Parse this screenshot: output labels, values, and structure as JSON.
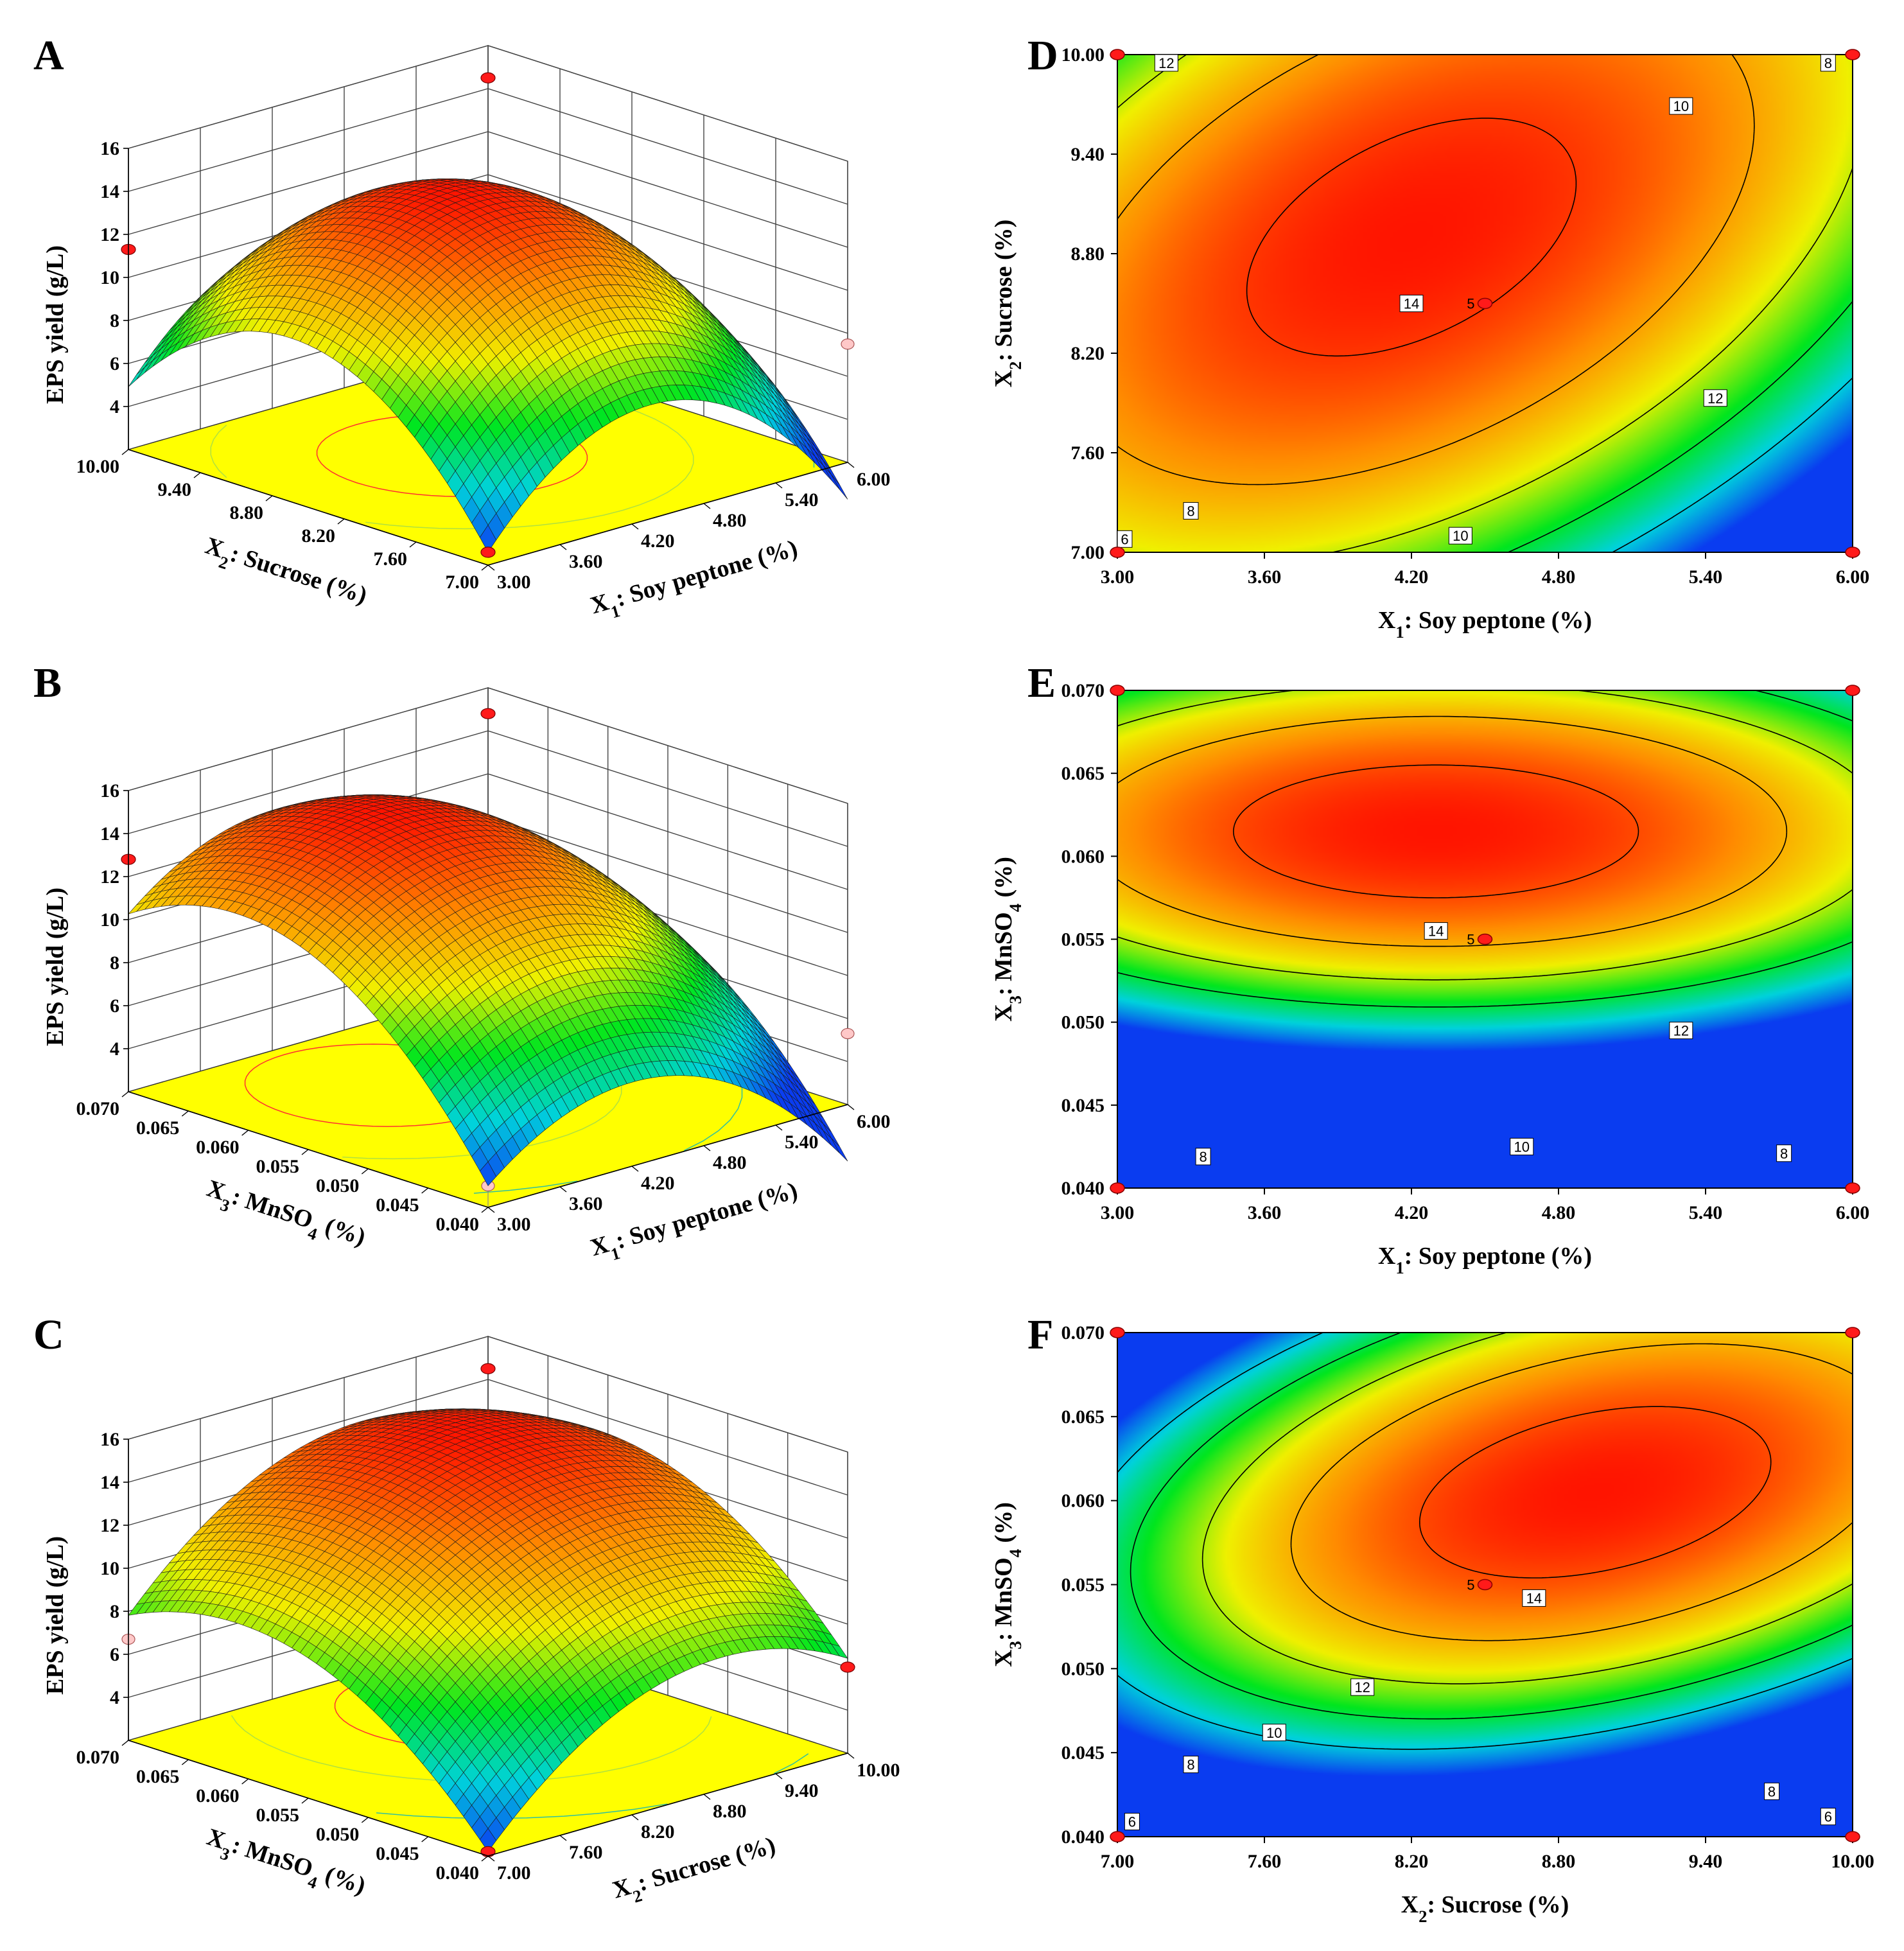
{
  "figure": {
    "colors": {
      "low": "#0a3cf0",
      "cyan": "#00d2dc",
      "green": "#00e61e",
      "yellow": "#f0f000",
      "orange": "#ff8c00",
      "red": "#ff1400",
      "floor": "#ffff00",
      "design_point": "#ff1a1a",
      "design_point_below": "#ffc8c8"
    }
  },
  "chart_data": [
    {
      "panel": "A",
      "type": "surface",
      "zlabel": "EPS yield (g/L)",
      "z_ticks": [
        "4",
        "6",
        "8",
        "10",
        "12",
        "14",
        "16"
      ],
      "zlim": [
        2,
        16
      ],
      "left_axis": {
        "label_main": "X",
        "label_sub": "2",
        "label_rest": ": Sucrose (%)",
        "ticks": [
          "7.00",
          "7.60",
          "8.20",
          "8.80",
          "9.40",
          "10.00"
        ],
        "range": [
          7.0,
          10.0
        ]
      },
      "right_axis": {
        "label_main": "X",
        "label_sub": "1",
        "label_rest": ": Soy peptone (%)",
        "ticks": [
          "3.00",
          "3.60",
          "4.20",
          "4.80",
          "5.40",
          "6.00"
        ],
        "range": [
          3.0,
          6.0
        ]
      },
      "peak_center": [
        0.55,
        0.45
      ],
      "zmax": 14.3,
      "zmin_corner": 2.6,
      "design_points": [
        {
          "left": 1.0,
          "right": 1.0,
          "yield": 14.5,
          "above": true
        },
        {
          "left": 1.0,
          "right": 0.0,
          "yield": 11.3,
          "above": true
        },
        {
          "left": 0.0,
          "right": 1.0,
          "yield": 7.5,
          "above": false
        },
        {
          "left": 0.0,
          "right": 0.0,
          "yield": 2.6,
          "above": true
        }
      ]
    },
    {
      "panel": "B",
      "type": "surface",
      "zlabel": "EPS yield (g/L)",
      "z_ticks": [
        "4",
        "6",
        "8",
        "10",
        "12",
        "14",
        "16"
      ],
      "zlim": [
        2,
        16
      ],
      "left_axis": {
        "label_main": "X",
        "label_sub": "3",
        "label_rest": ": MnSO",
        "label_sub2": "4",
        "label_end": " (%)",
        "ticks": [
          "0.040",
          "0.045",
          "0.050",
          "0.055",
          "0.060",
          "0.065",
          "0.070"
        ],
        "range": [
          0.04,
          0.07
        ]
      },
      "right_axis": {
        "label_main": "X",
        "label_sub": "1",
        "label_rest": ": Soy peptone (%)",
        "ticks": [
          "3.00",
          "3.60",
          "4.20",
          "4.80",
          "5.40",
          "6.00"
        ],
        "range": [
          3.0,
          6.0
        ]
      },
      "peak_center": [
        0.7,
        0.4
      ],
      "zmax": 14.8,
      "zmin_corner": 3.0,
      "design_points": [
        {
          "left": 1.0,
          "right": 1.0,
          "yield": 14.8,
          "above": true
        },
        {
          "left": 1.0,
          "right": 0.0,
          "yield": 12.8,
          "above": true
        },
        {
          "left": 0.0,
          "right": 1.0,
          "yield": 5.3,
          "above": false
        },
        {
          "left": 0.0,
          "right": 0.0,
          "yield": 3.0,
          "above": false
        }
      ]
    },
    {
      "panel": "C",
      "type": "surface",
      "zlabel": "EPS yield (g/L)",
      "z_ticks": [
        "4",
        "6",
        "8",
        "10",
        "12",
        "14",
        "16"
      ],
      "zlim": [
        2,
        16
      ],
      "left_axis": {
        "label_main": "X",
        "label_sub": "3",
        "label_rest": ": MnSO",
        "label_sub2": "4",
        "label_end": " (%)",
        "ticks": [
          "0.040",
          "0.045",
          "0.050",
          "0.055",
          "0.060",
          "0.065",
          "0.070"
        ],
        "range": [
          0.04,
          0.07
        ]
      },
      "right_axis": {
        "label_main": "X",
        "label_sub": "2",
        "label_rest": ": Sucrose (%)",
        "ticks": [
          "7.00",
          "7.60",
          "8.20",
          "8.80",
          "9.40",
          "10.00"
        ],
        "range": [
          7.0,
          10.0
        ]
      },
      "peak_center": [
        0.7,
        0.65
      ],
      "zmax": 15.0,
      "zmin_corner": 2.2,
      "design_points": [
        {
          "left": 1.0,
          "right": 1.0,
          "yield": 14.5,
          "above": true
        },
        {
          "left": 1.0,
          "right": 0.0,
          "yield": 6.7,
          "above": false
        },
        {
          "left": 0.0,
          "right": 1.0,
          "yield": 6.0,
          "above": true
        },
        {
          "left": 0.0,
          "right": 0.0,
          "yield": 2.2,
          "above": true
        }
      ]
    },
    {
      "panel": "D",
      "type": "contour",
      "xlabel_main": "X",
      "xlabel_sub": "1",
      "xlabel_rest": ": Soy peptone (%)",
      "ylabel_main": "X",
      "ylabel_sub": "2",
      "ylabel_rest": ": Sucrose (%)",
      "x_ticks": [
        "3.00",
        "3.60",
        "4.20",
        "4.80",
        "5.40",
        "6.00"
      ],
      "y_ticks": [
        "7.00",
        "7.60",
        "8.20",
        "8.80",
        "9.40",
        "10.00"
      ],
      "xlim": [
        3.0,
        6.0
      ],
      "ylim": [
        7.0,
        10.0
      ],
      "model": {
        "x0": 4.2,
        "y0": 8.9,
        "zmax": 14.6,
        "a": 3.0,
        "b": 3.2,
        "c": 0.9
      },
      "contour_levels": [
        6,
        8,
        10,
        12,
        14
      ],
      "contour_labels": [
        {
          "text": "14",
          "x": 4.2,
          "y": 8.5
        },
        {
          "text": "12",
          "x": 3.2,
          "y": 9.95
        },
        {
          "text": "12",
          "x": 5.44,
          "y": 7.93
        },
        {
          "text": "10",
          "x": 5.3,
          "y": 9.69
        },
        {
          "text": "10",
          "x": 4.4,
          "y": 7.1
        },
        {
          "text": "8",
          "x": 5.9,
          "y": 9.95
        },
        {
          "text": "8",
          "x": 3.3,
          "y": 7.25
        },
        {
          "text": "6",
          "x": 3.03,
          "y": 7.08
        }
      ],
      "center_point": {
        "x": 4.5,
        "y": 8.5,
        "label": "5"
      },
      "corner_points": [
        [
          3.0,
          7.0
        ],
        [
          3.0,
          10.0
        ],
        [
          6.0,
          7.0
        ],
        [
          6.0,
          10.0
        ]
      ]
    },
    {
      "panel": "E",
      "type": "contour",
      "xlabel_main": "X",
      "xlabel_sub": "1",
      "xlabel_rest": ": Soy peptone (%)",
      "ylabel_main": "X",
      "ylabel_sub": "3",
      "ylabel_rest": ": MnSO",
      "ylabel_sub2": "4",
      "ylabel_end": " (%)",
      "x_ticks": [
        "3.00",
        "3.60",
        "4.20",
        "4.80",
        "5.40",
        "6.00"
      ],
      "y_ticks": [
        "0.040",
        "0.045",
        "0.050",
        "0.055",
        "0.060",
        "0.065",
        "0.070"
      ],
      "xlim": [
        3.0,
        6.0
      ],
      "ylim": [
        0.04,
        0.07
      ],
      "model": {
        "x0": 4.3,
        "y0": 0.0615,
        "zmax": 15.0,
        "a": 3.2,
        "b": 0.0155,
        "c": 0.0
      },
      "contour_levels": [
        8,
        10,
        12,
        14
      ],
      "contour_labels": [
        {
          "text": "14",
          "x": 4.3,
          "y": 0.0555
        },
        {
          "text": "12",
          "x": 5.3,
          "y": 0.0495
        },
        {
          "text": "10",
          "x": 4.65,
          "y": 0.0425
        },
        {
          "text": "8",
          "x": 3.35,
          "y": 0.0419
        },
        {
          "text": "8",
          "x": 5.72,
          "y": 0.0421
        }
      ],
      "center_point": {
        "x": 4.5,
        "y": 0.055,
        "label": "5"
      },
      "corner_points": [
        [
          3.0,
          0.04
        ],
        [
          3.0,
          0.07
        ],
        [
          6.0,
          0.04
        ],
        [
          6.0,
          0.07
        ]
      ]
    },
    {
      "panel": "F",
      "type": "contour",
      "xlabel_main": "X",
      "xlabel_sub": "2",
      "xlabel_rest": ": Sucrose (%)",
      "ylabel_main": "X",
      "ylabel_sub": "3",
      "ylabel_rest": ": MnSO",
      "ylabel_sub2": "4",
      "ylabel_end": " (%)",
      "x_ticks": [
        "7.00",
        "7.60",
        "8.20",
        "8.80",
        "9.40",
        "10.00"
      ],
      "y_ticks": [
        "0.040",
        "0.045",
        "0.050",
        "0.055",
        "0.060",
        "0.065",
        "0.070"
      ],
      "xlim": [
        7.0,
        10.0
      ],
      "ylim": [
        0.04,
        0.07
      ],
      "model": {
        "x0": 8.95,
        "y0": 0.0605,
        "zmax": 15.0,
        "a": 2.6,
        "b": 0.0185,
        "c": 0.7
      },
      "contour_levels": [
        6,
        8,
        10,
        12,
        14
      ],
      "contour_labels": [
        {
          "text": "14",
          "x": 8.7,
          "y": 0.0542
        },
        {
          "text": "12",
          "x": 8.0,
          "y": 0.0489
        },
        {
          "text": "10",
          "x": 7.64,
          "y": 0.0462
        },
        {
          "text": "8",
          "x": 7.3,
          "y": 0.0443
        },
        {
          "text": "8",
          "x": 9.67,
          "y": 0.0427
        },
        {
          "text": "6",
          "x": 7.06,
          "y": 0.0409
        },
        {
          "text": "6",
          "x": 9.9,
          "y": 0.0412
        }
      ],
      "center_point": {
        "x": 8.5,
        "y": 0.055,
        "label": "5"
      },
      "corner_points": [
        [
          7.0,
          0.04
        ],
        [
          7.0,
          0.07
        ],
        [
          10.0,
          0.04
        ],
        [
          10.0,
          0.07
        ]
      ]
    }
  ]
}
